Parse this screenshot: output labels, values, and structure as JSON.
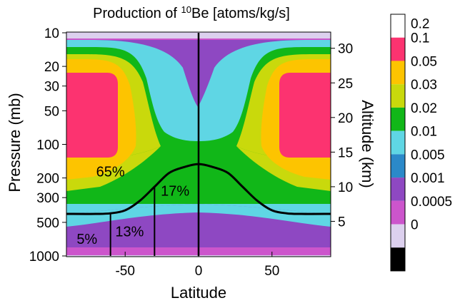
{
  "chart_data": {
    "type": "heatmap",
    "title_prefix": "Production of ",
    "title_sup": "10",
    "title_suffix": "Be [atoms/kg/s]",
    "xlabel": "Latitude",
    "ylabel_left": "Pressure (mb)",
    "ylabel_right": "Altitude (km)",
    "x_axis": {
      "scale": "linear",
      "range": [
        -90,
        90
      ],
      "ticks": [
        -50,
        0,
        50
      ]
    },
    "y_axis_left": {
      "scale": "log",
      "range": [
        1000,
        10
      ],
      "ticks": [
        1000,
        500,
        300,
        200,
        100,
        50,
        30,
        20,
        10
      ]
    },
    "y_axis_right": {
      "ticks": [
        5,
        10,
        15,
        20,
        25,
        30
      ]
    },
    "colorbar": [
      {
        "label": "0.2",
        "color": "#ffffff"
      },
      {
        "label": "0.1",
        "color": "#fc3370"
      },
      {
        "label": "0.05",
        "color": "#fdc400"
      },
      {
        "label": "0.03",
        "color": "#c9d90c"
      },
      {
        "label": "0.02",
        "color": "#11b718"
      },
      {
        "label": "0.01",
        "color": "#5fd6e4"
      },
      {
        "label": "0.005",
        "color": "#2b89c9"
      },
      {
        "label": "0.001",
        "color": "#8e48c2"
      },
      {
        "label": "0.0005",
        "color": "#cc55cc"
      },
      {
        "label": "0",
        "color": "#dcd0ee"
      },
      {
        "label": "",
        "color": "#000000"
      }
    ],
    "tropopause_curve": {
      "lat": [
        -90,
        -70,
        -60,
        -50,
        -40,
        -30,
        -20,
        -10,
        0,
        10,
        20,
        30,
        40,
        50,
        60,
        70,
        90
      ],
      "pressure": [
        420,
        420,
        415,
        390,
        320,
        240,
        180,
        160,
        150,
        160,
        180,
        240,
        320,
        390,
        415,
        420,
        420
      ]
    },
    "vertical_lines": [
      {
        "lat": -60,
        "from_pressure": 1000,
        "to_pressure": 415
      },
      {
        "lat": -30,
        "from_pressure": 1000,
        "to_pressure": 240
      },
      {
        "lat": 0,
        "from_pressure": 1000,
        "to_pressure": 10
      }
    ],
    "annotations": [
      {
        "text": "65%",
        "lat": -60,
        "pressure": 175
      },
      {
        "text": "17%",
        "lat": -16,
        "pressure": 260
      },
      {
        "text": "13%",
        "lat": -47,
        "pressure": 600
      },
      {
        "text": "5%",
        "lat": -76,
        "pressure": 700
      }
    ]
  }
}
